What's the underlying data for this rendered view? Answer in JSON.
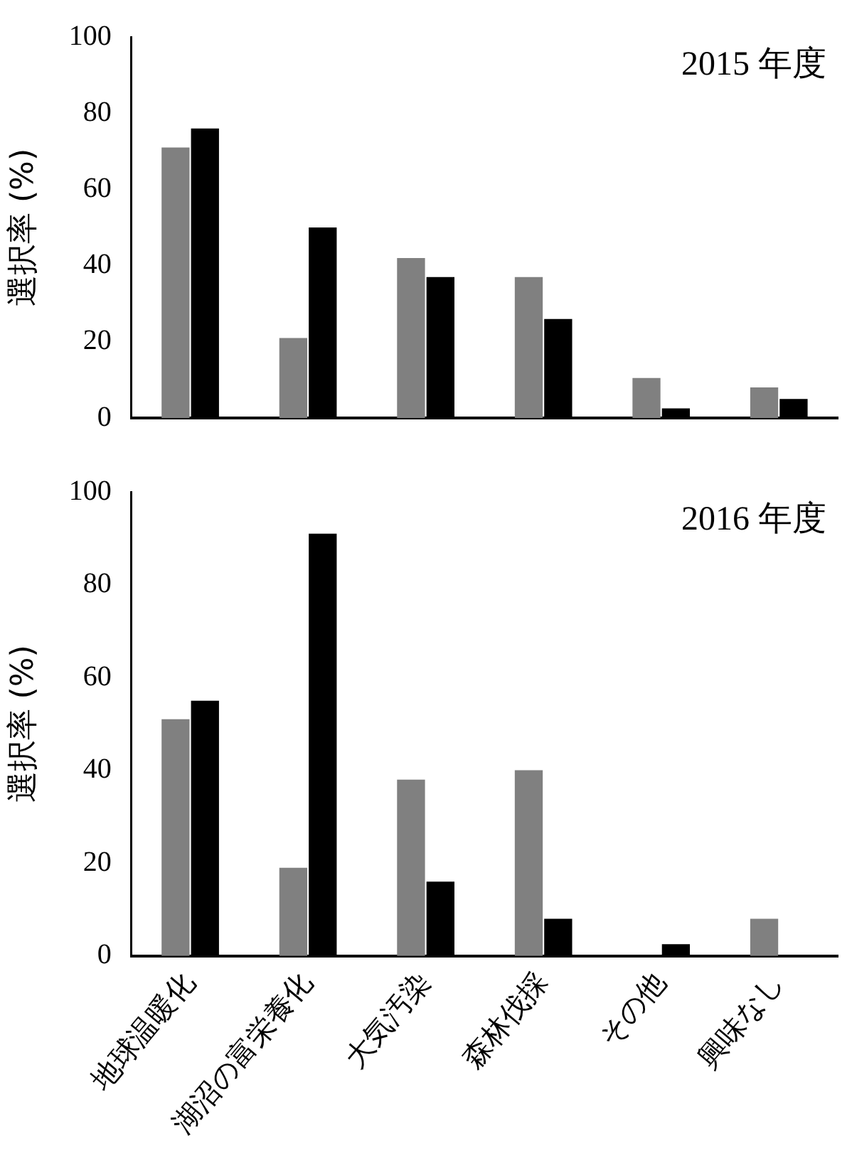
{
  "chart_data": [
    {
      "type": "bar",
      "title": "2015 年度",
      "ylabel": "選択率 (%)",
      "categories": [
        null,
        null,
        null,
        null,
        null,
        null
      ],
      "series": [
        {
          "color": "#808080",
          "values": [
            71,
            21,
            42,
            37,
            10.5,
            8
          ]
        },
        {
          "color": "#000000",
          "values": [
            76,
            50,
            37,
            26,
            2.5,
            5
          ]
        }
      ],
      "ylim": [
        0,
        100
      ],
      "yticks": [
        0,
        20,
        40,
        60,
        80,
        100
      ],
      "grid": false,
      "legend": false,
      "tick_labels": "y"
    },
    {
      "type": "bar",
      "title": "2016 年度",
      "ylabel": "選択率 (%)",
      "categories": [
        "地球温暖化",
        "湖沼の富栄養化",
        "大気汚染",
        "森林伐採",
        "その他",
        "興味なし"
      ],
      "series": [
        {
          "color": "#808080",
          "values": [
            51,
            19,
            38,
            40,
            0,
            8
          ]
        },
        {
          "color": "#000000",
          "values": [
            55,
            91,
            16,
            8,
            2.5,
            0
          ]
        }
      ],
      "ylim": [
        0,
        100
      ],
      "yticks": [
        0,
        20,
        40,
        60,
        80,
        100
      ],
      "grid": false,
      "legend": false
    }
  ]
}
